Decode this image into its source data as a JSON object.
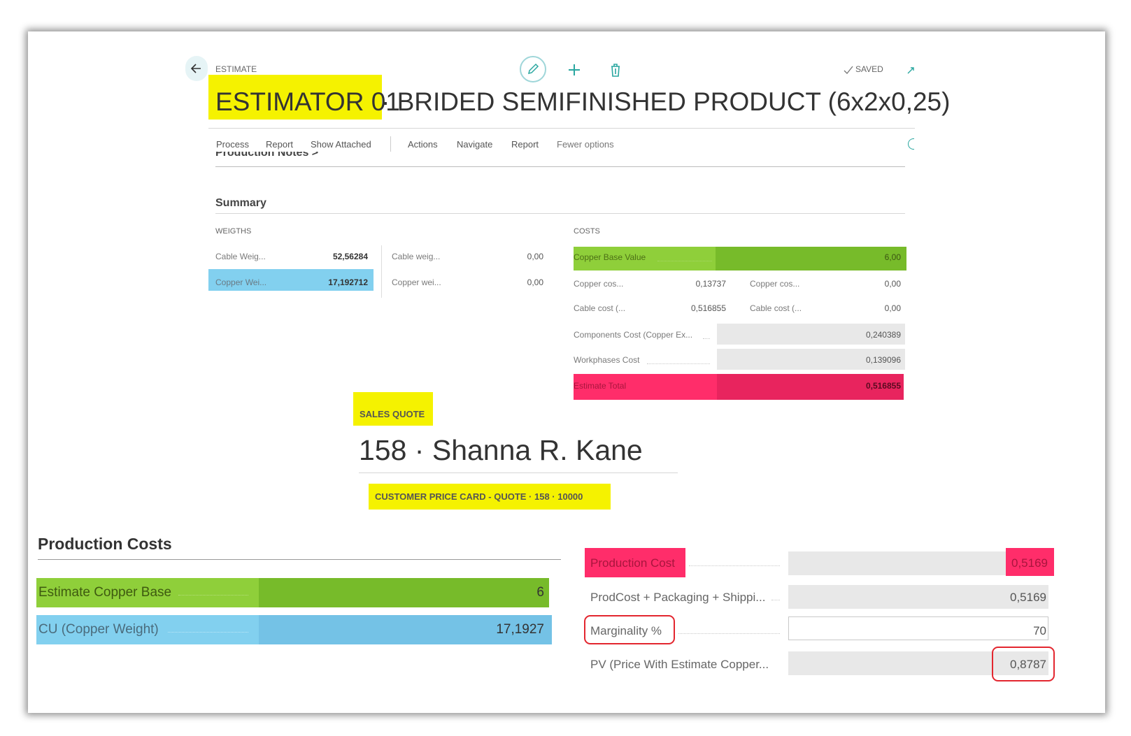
{
  "header": {
    "entity_caption": "ESTIMATE",
    "title_highlight": "ESTIMATOR 01",
    "title_rest": "· BRIDED SEMIFINISHED PRODUCT (6x2x0,25)",
    "saved_label": "SAVED"
  },
  "icons": {
    "back": "arrow-left-icon",
    "edit": "pencil-icon",
    "add": "plus-icon",
    "delete": "trash-icon",
    "saved": "check-icon",
    "expand": "arrow-out-icon"
  },
  "actions": [
    "Process",
    "Report",
    "Show Attached",
    "Actions",
    "Navigate",
    "Report",
    "Fewer options"
  ],
  "partial_section": "Production Notes >",
  "summary": {
    "title": "Summary",
    "weights_label": "WEIGTHS",
    "costs_label": "COSTS",
    "weights_left": [
      {
        "label": "Cable Weig...",
        "value": "52,56284"
      },
      {
        "label": "Copper Wei...",
        "value": "17,192712"
      }
    ],
    "weights_right": [
      {
        "label": "Cable weig...",
        "value": "0,00"
      },
      {
        "label": "Copper wei...",
        "value": "0,00"
      }
    ],
    "copper_base": {
      "label": "Copper Base Value",
      "value": "6,00"
    },
    "cost_pairs": [
      {
        "l_label": "Copper cos...",
        "l_value": "0,13737",
        "r_label": "Copper cos...",
        "r_value": "0,00"
      },
      {
        "l_label": "Cable cost (...",
        "l_value": "0,516855",
        "r_label": "Cable cost (...",
        "r_value": "0,00"
      }
    ],
    "components": {
      "label": "Components Cost (Copper Ex...",
      "value": "0,240389"
    },
    "workphases": {
      "label": "Workphases Cost",
      "value": "0,139096"
    },
    "total": {
      "label": "Estimate Total",
      "value": "0,516855"
    }
  },
  "sales_quote": {
    "caption": "SALES QUOTE",
    "title": "158 · Shanna R. Kane",
    "price_card": "CUSTOMER PRICE CARD - QUOTE · 158 · 10000"
  },
  "production_costs": {
    "title": "Production Costs",
    "copper_base": {
      "label": "Estimate Copper Base",
      "value": "6"
    },
    "cu_weight": {
      "label": "CU (Copper Weight)",
      "value": "17,1927"
    }
  },
  "pricing": {
    "production_cost": {
      "label": "Production Cost",
      "value": "0,5169"
    },
    "prodcost_packaging": {
      "label": "ProdCost + Packaging + Shippi...",
      "value": "0,5169"
    },
    "marginality": {
      "label": "Marginality %",
      "value": "70"
    },
    "pv": {
      "label": "PV (Price With Estimate Copper...",
      "value": "0,8787"
    }
  },
  "colors": {
    "highlight_yellow": "#f5f200",
    "pink": "#ff2d6a",
    "green": "#8fcf3a",
    "blue": "#82d0ef",
    "teal_accent": "#2aa7a0",
    "red_outline": "#e3262f"
  }
}
